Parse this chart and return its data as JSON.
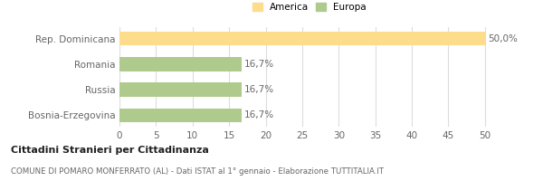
{
  "categories": [
    "Rep. Dominicana",
    "Romania",
    "Russia",
    "Bosnia-Erzegovina"
  ],
  "values": [
    50.0,
    16.7,
    16.7,
    16.7
  ],
  "colors": [
    "#FDDC8C",
    "#AECA8C",
    "#AECA8C",
    "#AECA8C"
  ],
  "bar_labels": [
    "50,0%",
    "16,7%",
    "16,7%",
    "16,7%"
  ],
  "legend_entries": [
    "America",
    "Europa"
  ],
  "legend_colors": [
    "#FDDC8C",
    "#AECA8C"
  ],
  "xlim": [
    0,
    52
  ],
  "xticks": [
    0,
    5,
    10,
    15,
    20,
    25,
    30,
    35,
    40,
    45,
    50
  ],
  "title_bold": "Cittadini Stranieri per Cittadinanza",
  "subtitle": "COMUNE DI POMARO MONFERRATO (AL) - Dati ISTAT al 1° gennaio - Elaborazione TUTTITALIA.IT",
  "background_color": "#ffffff",
  "grid_color": "#dddddd",
  "label_fontsize": 7.5,
  "tick_fontsize": 7.5,
  "bar_label_fontsize": 7.5
}
